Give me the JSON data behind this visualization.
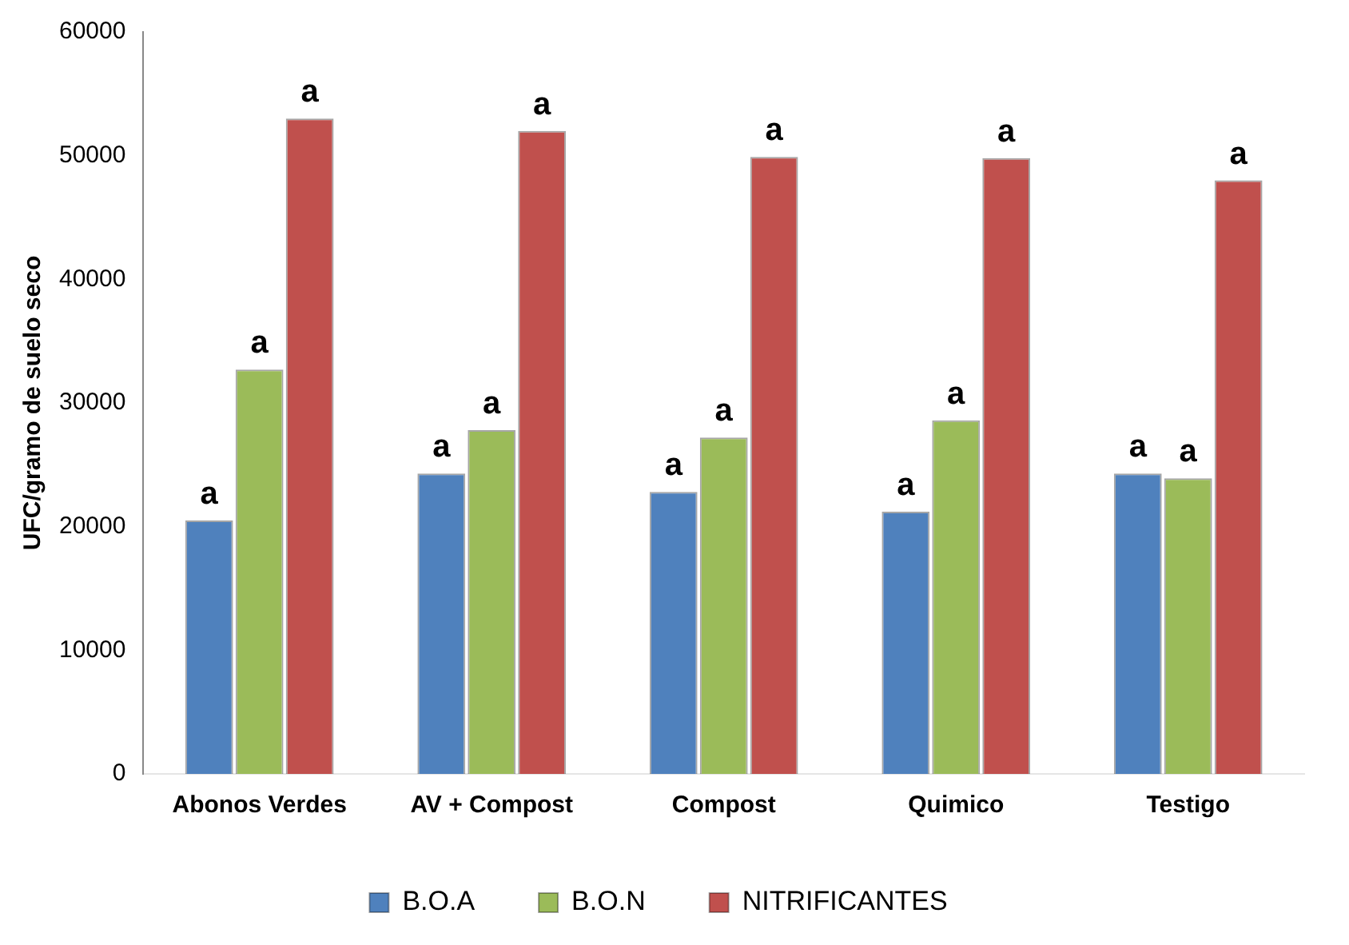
{
  "chart_data": {
    "type": "bar",
    "ylabel": "UFC/gramo de suelo seco",
    "categories": [
      "Abonos Verdes",
      "AV + Compost",
      "Compost",
      "Quimico",
      "Testigo"
    ],
    "series": [
      {
        "name": "B.O.A",
        "color": "#4f81bd",
        "values": [
          20500,
          24300,
          22800,
          21200,
          24300
        ],
        "value_labels": [
          "a",
          "a",
          "a",
          "a",
          "a"
        ]
      },
      {
        "name": "B.O.N",
        "color": "#9bbb59",
        "values": [
          32700,
          27800,
          27200,
          28600,
          23900
        ],
        "value_labels": [
          "a",
          "a",
          "a",
          "a",
          "a"
        ]
      },
      {
        "name": "NITRIFICANTES",
        "color": "#c0504d",
        "values": [
          53000,
          52000,
          49900,
          49800,
          48000
        ],
        "value_labels": [
          "a",
          "a",
          "a",
          "a",
          "a"
        ]
      }
    ],
    "ylim": [
      0,
      60000
    ],
    "yticks": [
      0,
      10000,
      20000,
      30000,
      40000,
      50000,
      60000
    ],
    "grid": false,
    "legend": "bottom"
  }
}
